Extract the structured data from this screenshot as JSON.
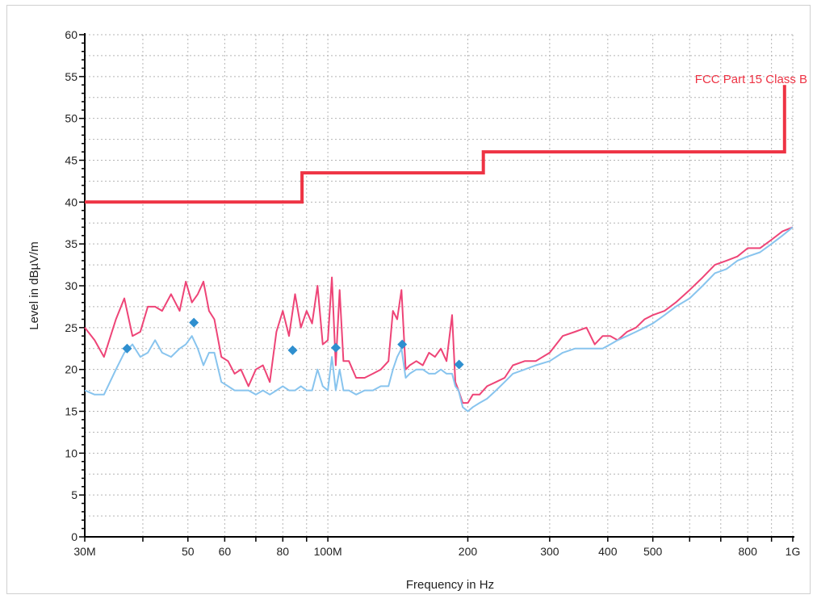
{
  "chart_data": {
    "type": "line",
    "xlabel": "Frequency in Hz",
    "ylabel": "Level in dBµV/m",
    "xscale": "log",
    "xlim": [
      30000000,
      1000000000
    ],
    "ylim": [
      0,
      60
    ],
    "yticks": [
      0,
      5,
      10,
      15,
      20,
      25,
      30,
      35,
      40,
      45,
      50,
      55,
      60
    ],
    "xticks": [
      {
        "value": 30000000,
        "label": "30M"
      },
      {
        "value": 50000000,
        "label": "50"
      },
      {
        "value": 60000000,
        "label": "60"
      },
      {
        "value": 80000000,
        "label": "80"
      },
      {
        "value": 100000000,
        "label": "100M"
      },
      {
        "value": 200000000,
        "label": "200"
      },
      {
        "value": 300000000,
        "label": "300"
      },
      {
        "value": 400000000,
        "label": "400"
      },
      {
        "value": 500000000,
        "label": "500"
      },
      {
        "value": 800000000,
        "label": "800"
      },
      {
        "value": 1000000000,
        "label": "1G"
      }
    ],
    "grid": true,
    "colors": {
      "limit": "#ee3344",
      "peak": "#ee4477",
      "qp": "#88c4ee",
      "marker": "#2f8fcf"
    },
    "limit": {
      "label": "FCC Part 15 Class B",
      "steps": [
        {
          "x": 30000000,
          "y": 40
        },
        {
          "x": 88000000,
          "y": 40
        },
        {
          "x": 88000000,
          "y": 43.5
        },
        {
          "x": 216000000,
          "y": 43.5
        },
        {
          "x": 216000000,
          "y": 46
        },
        {
          "x": 960000000,
          "y": 46
        },
        {
          "x": 960000000,
          "y": 54
        }
      ]
    },
    "series": [
      {
        "key": "peak",
        "x": [
          30000000,
          31500000,
          33000000,
          35000000,
          36500000,
          38000000,
          39500000,
          41000000,
          42500000,
          44000000,
          46000000,
          48000000,
          49500000,
          51000000,
          52500000,
          54000000,
          55500000,
          57000000,
          59000000,
          61000000,
          63000000,
          65000000,
          67500000,
          70000000,
          72500000,
          75000000,
          77500000,
          80000000,
          82500000,
          85000000,
          87500000,
          90000000,
          92500000,
          95000000,
          97500000,
          100000000,
          102000000,
          104000000,
          106000000,
          108000000,
          111000000,
          115000000,
          120000000,
          125000000,
          130000000,
          135000000,
          138000000,
          141000000,
          144000000,
          147000000,
          150000000,
          155000000,
          160000000,
          165000000,
          170000000,
          175000000,
          180000000,
          185000000,
          188000000,
          191000000,
          195000000,
          200000000,
          205000000,
          212000000,
          220000000,
          230000000,
          240000000,
          250000000,
          265000000,
          280000000,
          300000000,
          320000000,
          340000000,
          360000000,
          375000000,
          390000000,
          405000000,
          420000000,
          440000000,
          460000000,
          480000000,
          500000000,
          530000000,
          560000000,
          600000000,
          640000000,
          680000000,
          720000000,
          760000000,
          800000000,
          850000000,
          900000000,
          950000000,
          1000000000
        ],
        "values": [
          25,
          23.5,
          21.5,
          26,
          28.5,
          24,
          24.5,
          27.5,
          27.5,
          27,
          29,
          27,
          30.5,
          28,
          29,
          30.5,
          27,
          26,
          21.5,
          21,
          19.5,
          20,
          18,
          20,
          20.5,
          18.5,
          24.5,
          27,
          24,
          29,
          25,
          27,
          25.5,
          30,
          23,
          23.5,
          31,
          20.5,
          29.5,
          21,
          21,
          19,
          19,
          19.5,
          20,
          21,
          27,
          26,
          29.5,
          20,
          20.5,
          21,
          20.5,
          22,
          21.5,
          22.5,
          21,
          26.5,
          18.5,
          17.5,
          16,
          16,
          17,
          17,
          18,
          18.5,
          19,
          20.5,
          21,
          21,
          22,
          24,
          24.5,
          25,
          23,
          24,
          24,
          23.5,
          24.5,
          25,
          26,
          26.5,
          27,
          28,
          29.5,
          31,
          32.5,
          33,
          33.5,
          34.5,
          34.5,
          35.5,
          36.5,
          37
        ]
      },
      {
        "key": "quasi-peak",
        "x": [
          30000000,
          31500000,
          33000000,
          35000000,
          36500000,
          38000000,
          39500000,
          41000000,
          42500000,
          44000000,
          46000000,
          48000000,
          49500000,
          51000000,
          52500000,
          54000000,
          55500000,
          57000000,
          59000000,
          61000000,
          63000000,
          65000000,
          67500000,
          70000000,
          72500000,
          75000000,
          77500000,
          80000000,
          82500000,
          85000000,
          87500000,
          90000000,
          92500000,
          95000000,
          97500000,
          100000000,
          102000000,
          104000000,
          106000000,
          108000000,
          111000000,
          115000000,
          120000000,
          125000000,
          130000000,
          135000000,
          138000000,
          141000000,
          144000000,
          147000000,
          150000000,
          155000000,
          160000000,
          165000000,
          170000000,
          175000000,
          180000000,
          185000000,
          188000000,
          191000000,
          195000000,
          200000000,
          205000000,
          212000000,
          220000000,
          230000000,
          240000000,
          250000000,
          265000000,
          280000000,
          300000000,
          320000000,
          340000000,
          360000000,
          375000000,
          390000000,
          405000000,
          420000000,
          440000000,
          460000000,
          480000000,
          500000000,
          530000000,
          560000000,
          600000000,
          640000000,
          680000000,
          720000000,
          760000000,
          800000000,
          850000000,
          900000000,
          950000000,
          1000000000
        ],
        "values": [
          17.5,
          17,
          17,
          20,
          22,
          23,
          21.5,
          22,
          23.5,
          22,
          21.5,
          22.5,
          23,
          24,
          22.5,
          20.5,
          22,
          22,
          18.5,
          18,
          17.5,
          17.5,
          17.5,
          17,
          17.5,
          17,
          17.5,
          18,
          17.5,
          17.5,
          18,
          17.5,
          17.5,
          20,
          18,
          17.5,
          21.5,
          17.5,
          20,
          17.5,
          17.5,
          17,
          17.5,
          17.5,
          18,
          18,
          20,
          21.5,
          22.5,
          19,
          19.5,
          20,
          20,
          19.5,
          19.5,
          20,
          19.5,
          19.5,
          18,
          17.5,
          15.5,
          15,
          15.5,
          16,
          16.5,
          17.5,
          18.5,
          19.5,
          20,
          20.5,
          21,
          22,
          22.5,
          22.5,
          22.5,
          22.5,
          23,
          23.5,
          24,
          24.5,
          25,
          25.5,
          26.5,
          27.5,
          28.5,
          30,
          31.5,
          32,
          33,
          33.5,
          34,
          35,
          36,
          37
        ]
      }
    ],
    "markers": [
      {
        "x": 37000000,
        "y": 22.5
      },
      {
        "x": 51500000,
        "y": 25.6
      },
      {
        "x": 84000000,
        "y": 22.3
      },
      {
        "x": 104000000,
        "y": 22.6
      },
      {
        "x": 144500000,
        "y": 23
      },
      {
        "x": 191500000,
        "y": 20.6
      }
    ]
  }
}
